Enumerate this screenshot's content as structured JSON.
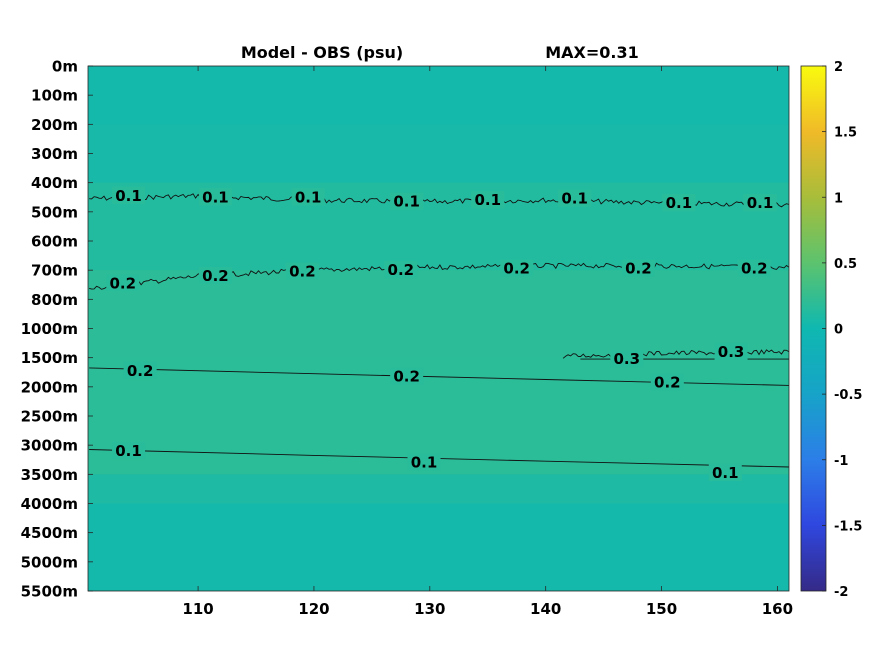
{
  "chart_data": {
    "type": "heatmap",
    "title": "Model - OBS (psu)",
    "annotation": "MAX=0.31",
    "x_ticks": [
      "110",
      "120",
      "130",
      "140",
      "150",
      "160"
    ],
    "x_tick_values": [
      110,
      120,
      130,
      140,
      150,
      160
    ],
    "xlim": [
      100.5,
      161
    ],
    "y_ticks": [
      "0m",
      "100m",
      "200m",
      "300m",
      "400m",
      "500m",
      "600m",
      "700m",
      "800m",
      "1000m",
      "1500m",
      "2000m",
      "2500m",
      "3000m",
      "3500m",
      "4000m",
      "4500m",
      "5000m",
      "5500m"
    ],
    "colorbar": {
      "ticks": [
        "2",
        "1.5",
        "1",
        "0.5",
        "0",
        "-0.5",
        "-1",
        "-1.5",
        "-2"
      ],
      "tick_values": [
        2,
        1.5,
        1,
        0.5,
        0,
        -0.5,
        -1,
        -1.5,
        -2
      ],
      "range": [
        -2,
        2
      ],
      "colormap": "parula"
    },
    "field_bands": [
      {
        "from_level": 0,
        "to_level": 2,
        "value": 0.03
      },
      {
        "from_level": 2,
        "to_level": 4,
        "value": 0.06
      },
      {
        "from_level": 4,
        "to_level": 7,
        "value": 0.13
      },
      {
        "from_level": 7,
        "to_level": 10,
        "value": 0.19
      },
      {
        "from_level": 10,
        "to_level": 14,
        "value": 0.18
      },
      {
        "from_level": 14,
        "to_level": 15,
        "value": 0.1
      },
      {
        "from_level": 15,
        "to_level": 18,
        "value": 0.03
      }
    ],
    "contours": [
      {
        "value": 0.1,
        "label": "0.1",
        "noisy": true,
        "points": [
          [
            100.6,
            4.55
          ],
          [
            110,
            4.45
          ],
          [
            120,
            4.6
          ],
          [
            130,
            4.65
          ],
          [
            140,
            4.6
          ],
          [
            150,
            4.7
          ],
          [
            161,
            4.75
          ]
        ],
        "label_positions": [
          [
            104,
            4.45
          ],
          [
            111.5,
            4.5
          ],
          [
            119.5,
            4.5
          ],
          [
            128,
            4.65
          ],
          [
            135,
            4.6
          ],
          [
            142.5,
            4.55
          ],
          [
            151.5,
            4.7
          ],
          [
            158.5,
            4.7
          ]
        ]
      },
      {
        "value": 0.2,
        "label": "0.2",
        "noisy": true,
        "points": [
          [
            100.6,
            7.65
          ],
          [
            110,
            7.2
          ],
          [
            120,
            7.0
          ],
          [
            130,
            6.9
          ],
          [
            140,
            6.85
          ],
          [
            150,
            6.85
          ],
          [
            161,
            6.9
          ]
        ],
        "label_positions": [
          [
            103.5,
            7.45
          ],
          [
            111.5,
            7.2
          ],
          [
            119,
            7.05
          ],
          [
            127.5,
            7.0
          ],
          [
            137.5,
            6.95
          ],
          [
            148,
            6.95
          ],
          [
            158,
            6.95
          ]
        ]
      },
      {
        "value": 0.3,
        "label": "0.3",
        "noisy": true,
        "points": [
          [
            141.5,
            9.95
          ],
          [
            150,
            9.85
          ],
          [
            161,
            9.8
          ]
        ],
        "label_positions": [
          [
            147,
            10.05
          ],
          [
            156,
            9.8
          ]
        ]
      },
      {
        "value": 0.3,
        "label": "",
        "noisy": false,
        "points": [
          [
            143,
            10.05
          ],
          [
            150,
            10.05
          ],
          [
            161,
            10.05
          ]
        ],
        "label_positions": []
      },
      {
        "value": 0.2,
        "label": "0.2",
        "noisy": false,
        "points": [
          [
            100.6,
            10.35
          ],
          [
            120,
            10.55
          ],
          [
            140,
            10.75
          ],
          [
            161,
            10.95
          ]
        ],
        "label_positions": [
          [
            105,
            10.45
          ],
          [
            128,
            10.65
          ],
          [
            150.5,
            10.85
          ]
        ]
      },
      {
        "value": 0.1,
        "label": "0.1",
        "noisy": false,
        "points": [
          [
            100.6,
            13.15
          ],
          [
            120,
            13.35
          ],
          [
            140,
            13.55
          ],
          [
            161,
            13.75
          ]
        ],
        "label_positions": [
          [
            104,
            13.2
          ],
          [
            129.5,
            13.6
          ],
          [
            155.5,
            13.95
          ]
        ]
      }
    ],
    "ylabel": "",
    "xlabel": ""
  }
}
